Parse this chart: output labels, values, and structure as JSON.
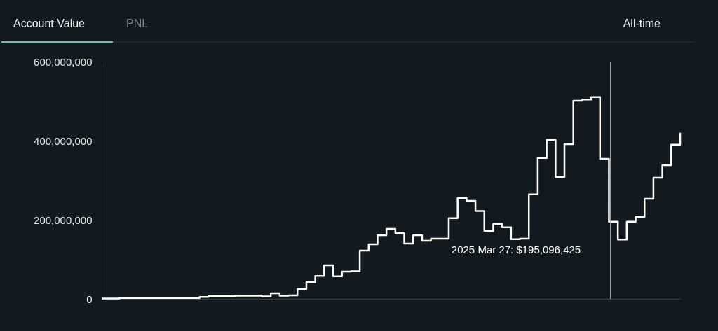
{
  "chart_data": {
    "type": "step",
    "title": "Account Value",
    "subtitle": "PNL",
    "categories": [
      null,
      null,
      null,
      null,
      null,
      null,
      null,
      null,
      null,
      null,
      null,
      null,
      null,
      null,
      null,
      null,
      null,
      null,
      null,
      null,
      null,
      null,
      null,
      null,
      null,
      null,
      null,
      null,
      null,
      null,
      null,
      null,
      null,
      null,
      null,
      null,
      null,
      null,
      null,
      null,
      null,
      null,
      null,
      null,
      null,
      null,
      null,
      null,
      null,
      null,
      null,
      null,
      null,
      null,
      null,
      null,
      null,
      null,
      null,
      null,
      null,
      null,
      null,
      null,
      null,
      null
    ],
    "series": [
      {
        "color": "#ffffff",
        "values": [
          1000000,
          1000000,
          2000000,
          2000000,
          2000000,
          2000000,
          2000000,
          2000000,
          2000000,
          2000000,
          2000000,
          5000000,
          7000000,
          7000000,
          7000000,
          8000000,
          8000000,
          8000000,
          6000000,
          14000000,
          8000000,
          9000000,
          25000000,
          42000000,
          58000000,
          85000000,
          57000000,
          69000000,
          70000000,
          122000000,
          138000000,
          161000000,
          177000000,
          166000000,
          140000000,
          161000000,
          147000000,
          152000000,
          152000000,
          204000000,
          255000000,
          248000000,
          222000000,
          172000000,
          190000000,
          181000000,
          151000000,
          152000000,
          264000000,
          356000000,
          402000000,
          308000000,
          391000000,
          501000000,
          504000000,
          510000000,
          354000000,
          195000000,
          150000000,
          195000000,
          207000000,
          253000000,
          306000000,
          338000000,
          390000000,
          420000000
        ]
      }
    ],
    "ylim": [
      0,
      600000000
    ],
    "yticks": [
      0,
      {
        "value": 200000000,
        "label": "200,000,000"
      },
      {
        "value": 400000000,
        "label": "400,000,000"
      },
      {
        "value": 600000000,
        "label": "600,000,000"
      }
    ],
    "tick_labels": "y",
    "grid": false,
    "line_style": "solid",
    "marker": "none",
    "annotations": [
      "2025 Mar 27: $195,096,425",
      "All-time"
    ]
  }
}
